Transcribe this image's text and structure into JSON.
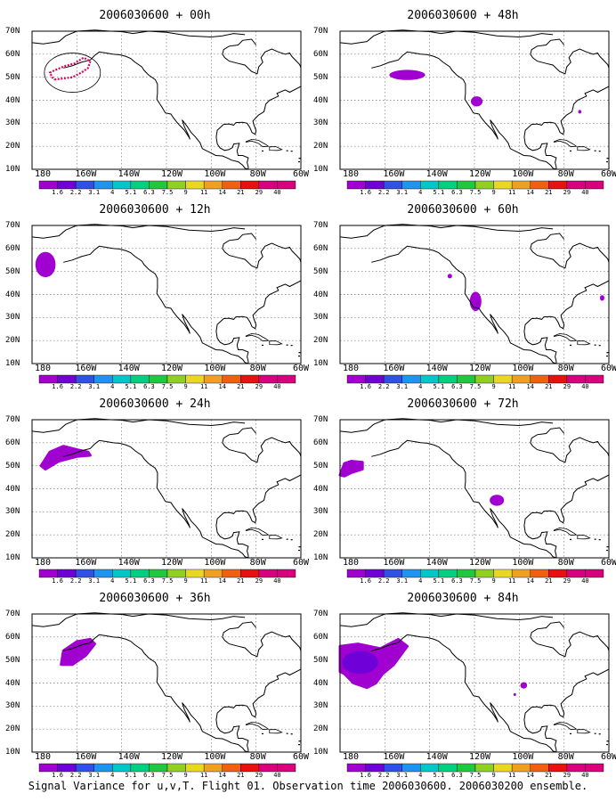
{
  "y_labels": [
    "70N",
    "60N",
    "50N",
    "40N",
    "30N",
    "20N",
    "10N"
  ],
  "x_labels": [
    "180",
    "160W",
    "140W",
    "120W",
    "100W",
    "80W",
    "60W"
  ],
  "colorbar": {
    "labels": [
      "1.6",
      "2.2",
      "3.1",
      "4",
      "5.1",
      "6.3",
      "7.5",
      "9",
      "11",
      "14",
      "21",
      "29",
      "40"
    ],
    "colors": [
      "#a000d0",
      "#7000d8",
      "#3050e8",
      "#1c94f0",
      "#00c8c8",
      "#00d080",
      "#20c840",
      "#90d020",
      "#e8d820",
      "#f0a020",
      "#f06010",
      "#e81010",
      "#d8007c"
    ]
  },
  "panels": [
    {
      "title": "2006030600 + 00h",
      "lead": "00h"
    },
    {
      "title": "2006030600 + 48h",
      "lead": "48h"
    },
    {
      "title": "2006030600 + 12h",
      "lead": "12h"
    },
    {
      "title": "2006030600 + 60h",
      "lead": "60h"
    },
    {
      "title": "2006030600 + 24h",
      "lead": "24h"
    },
    {
      "title": "2006030600 + 72h",
      "lead": "72h"
    },
    {
      "title": "2006030600 + 36h",
      "lead": "36h"
    },
    {
      "title": "2006030600 + 84h",
      "lead": "84h"
    }
  ],
  "footer": "Signal Variance for u,v,T. Flight 01. Observation time 2006030600. 2006030200 ensemble."
}
